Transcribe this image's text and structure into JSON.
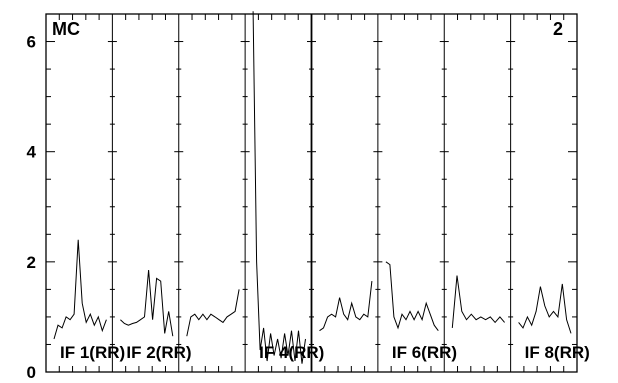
{
  "chart_data": {
    "type": "line",
    "corner_labels": {
      "left": "MC",
      "right": "2"
    },
    "ylim": [
      0,
      6.5
    ],
    "yticks": [
      0,
      2,
      4,
      6
    ],
    "panels": [
      {
        "label": "IF 1(RR)",
        "values": [
          0.6,
          0.85,
          0.8,
          1.0,
          0.95,
          1.05,
          2.4,
          1.25,
          0.9,
          1.05,
          0.85,
          1.0,
          0.75,
          0.95
        ]
      },
      {
        "label": "IF 2(RR)",
        "values": [
          0.95,
          0.88,
          0.85,
          0.88,
          0.9,
          0.95,
          1.0,
          1.85,
          0.95,
          1.7,
          1.65,
          0.7,
          1.1,
          0.65
        ]
      },
      {
        "label": "",
        "values": [
          0.65,
          1.0,
          1.05,
          0.95,
          1.05,
          0.95,
          1.05,
          1.0,
          0.95,
          0.9,
          1.0,
          1.05,
          1.1,
          1.5
        ]
      },
      {
        "label": "IF 4(RR)",
        "values": [
          6.55,
          2.0,
          0.4,
          0.8,
          0.2,
          0.7,
          0.3,
          0.6,
          0.25,
          0.7,
          0.3,
          0.75,
          0.2,
          0.75,
          0.15,
          0.6
        ]
      },
      {
        "label": "",
        "values": [
          0.75,
          0.8,
          1.0,
          1.05,
          1.0,
          1.35,
          1.05,
          0.95,
          1.25,
          1.0,
          0.95,
          1.05,
          1.0,
          1.65
        ]
      },
      {
        "label": "IF 6(RR)",
        "values": [
          2.0,
          1.95,
          1.0,
          0.8,
          1.05,
          0.95,
          1.1,
          0.95,
          1.1,
          0.95,
          1.25,
          1.05,
          0.85,
          0.75
        ]
      },
      {
        "label": "",
        "values": [
          0.8,
          1.75,
          1.1,
          0.95,
          1.05,
          0.95,
          1.0,
          0.95,
          1.0,
          0.9,
          1.0,
          0.9
        ]
      },
      {
        "label": "IF 8(RR)",
        "values": [
          0.9,
          0.8,
          1.0,
          0.85,
          1.1,
          1.55,
          1.2,
          1.0,
          1.1,
          1.0,
          1.6,
          0.95,
          0.7
        ]
      }
    ]
  }
}
